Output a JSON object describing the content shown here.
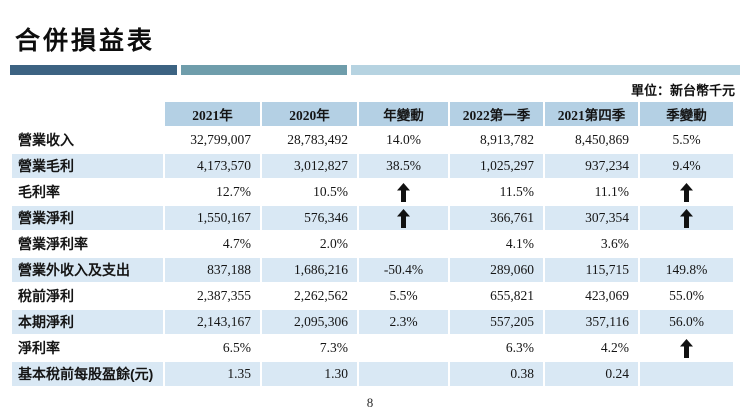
{
  "page": {
    "title": "合併損益表",
    "unit_note": "單位：新台幣千元",
    "page_number": "8"
  },
  "decor": {
    "bar_colors": [
      "#3c6382",
      "#6f9dab",
      "#b6d3e1"
    ]
  },
  "colors": {
    "header_bg": "#b4d0e4",
    "row_alt_bg": "#d9e8f4",
    "arrow": "#111111",
    "text": "#151515"
  },
  "table": {
    "columns": [
      "2021年",
      "2020年",
      "年變動",
      "2022第一季",
      "2021第四季",
      "季變動"
    ],
    "rows": [
      {
        "label": "營業收入",
        "values": [
          "32,799,007",
          "28,783,492",
          "14.0%",
          "8,913,782",
          "8,450,869",
          "5.5%"
        ]
      },
      {
        "label": "營業毛利",
        "values": [
          "4,173,570",
          "3,012,827",
          "38.5%",
          "1,025,297",
          "937,234",
          "9.4%"
        ]
      },
      {
        "label": "毛利率",
        "values": [
          "12.7%",
          "10.5%",
          "⬆",
          "11.5%",
          "11.1%",
          "⬆"
        ]
      },
      {
        "label": "營業淨利",
        "values": [
          "1,550,167",
          "576,346",
          "⬆",
          "366,761",
          "307,354",
          "⬆"
        ]
      },
      {
        "label": "營業淨利率",
        "values": [
          "4.7%",
          "2.0%",
          "",
          "4.1%",
          "3.6%",
          ""
        ]
      },
      {
        "label": "營業外收入及支出",
        "values": [
          "837,188",
          "1,686,216",
          "-50.4%",
          "289,060",
          "115,715",
          "149.8%"
        ]
      },
      {
        "label": "稅前淨利",
        "values": [
          "2,387,355",
          "2,262,562",
          "5.5%",
          "655,821",
          "423,069",
          "55.0%"
        ]
      },
      {
        "label": "本期淨利",
        "values": [
          "2,143,167",
          "2,095,306",
          "2.3%",
          "557,205",
          "357,116",
          "56.0%"
        ]
      },
      {
        "label": "淨利率",
        "values": [
          "6.5%",
          "7.3%",
          "",
          "6.3%",
          "4.2%",
          "⬆"
        ]
      },
      {
        "label": "基本稅前每股盈餘(元)",
        "values": [
          "1.35",
          "1.30",
          "",
          "0.38",
          "0.24",
          ""
        ]
      }
    ]
  }
}
